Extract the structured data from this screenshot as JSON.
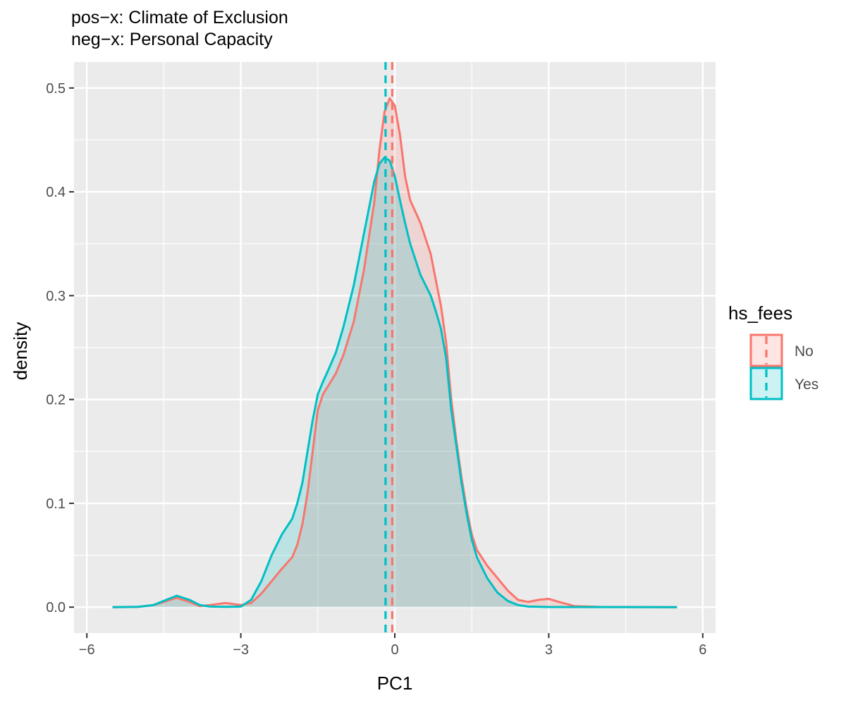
{
  "chart_data": {
    "type": "area",
    "title_lines": [
      "pos−x: Climate of Exclusion",
      "neg−x: Personal Capacity"
    ],
    "xlabel": "PC1",
    "ylabel": "density",
    "xlim": [
      -6,
      6
    ],
    "ylim": [
      0,
      0.5
    ],
    "x_ticks": [
      -6,
      -3,
      0,
      3,
      6
    ],
    "x_tick_labels": [
      "−6",
      "−3",
      "0",
      "3",
      "6"
    ],
    "y_ticks": [
      0,
      0.1,
      0.2,
      0.3,
      0.4,
      0.5
    ],
    "y_tick_labels": [
      "0.0",
      "0.1",
      "0.2",
      "0.3",
      "0.4",
      "0.5"
    ],
    "grid": true,
    "legend": {
      "title": "hs_fees",
      "position": "right",
      "entries": [
        "No",
        "Yes"
      ]
    },
    "series": [
      {
        "name": "No",
        "color": "#F8766D",
        "mean": -0.05,
        "points": [
          [
            -5.5,
            0
          ],
          [
            -5.0,
            0.0003
          ],
          [
            -4.7,
            0.002
          ],
          [
            -4.5,
            0.005
          ],
          [
            -4.25,
            0.009
          ],
          [
            -4.0,
            0.005
          ],
          [
            -3.8,
            0.001
          ],
          [
            -3.6,
            0.002
          ],
          [
            -3.3,
            0.004
          ],
          [
            -3.0,
            0.002
          ],
          [
            -2.8,
            0.004
          ],
          [
            -2.6,
            0.013
          ],
          [
            -2.4,
            0.025
          ],
          [
            -2.2,
            0.037
          ],
          [
            -2.0,
            0.048
          ],
          [
            -1.9,
            0.06
          ],
          [
            -1.8,
            0.08
          ],
          [
            -1.7,
            0.11
          ],
          [
            -1.6,
            0.15
          ],
          [
            -1.5,
            0.19
          ],
          [
            -1.4,
            0.205
          ],
          [
            -1.3,
            0.213
          ],
          [
            -1.15,
            0.225
          ],
          [
            -1.0,
            0.243
          ],
          [
            -0.8,
            0.275
          ],
          [
            -0.6,
            0.325
          ],
          [
            -0.4,
            0.39
          ],
          [
            -0.3,
            0.44
          ],
          [
            -0.2,
            0.477
          ],
          [
            -0.1,
            0.49
          ],
          [
            0.0,
            0.483
          ],
          [
            0.1,
            0.455
          ],
          [
            0.2,
            0.415
          ],
          [
            0.3,
            0.392
          ],
          [
            0.5,
            0.37
          ],
          [
            0.7,
            0.34
          ],
          [
            0.8,
            0.315
          ],
          [
            0.9,
            0.29
          ],
          [
            1.0,
            0.255
          ],
          [
            1.1,
            0.2
          ],
          [
            1.2,
            0.16
          ],
          [
            1.3,
            0.125
          ],
          [
            1.4,
            0.095
          ],
          [
            1.5,
            0.07
          ],
          [
            1.6,
            0.055
          ],
          [
            1.8,
            0.04
          ],
          [
            2.0,
            0.028
          ],
          [
            2.2,
            0.016
          ],
          [
            2.4,
            0.007
          ],
          [
            2.6,
            0.005
          ],
          [
            2.8,
            0.007
          ],
          [
            3.0,
            0.008
          ],
          [
            3.2,
            0.005
          ],
          [
            3.5,
            0.001
          ],
          [
            4.0,
            0.0002
          ],
          [
            5.5,
            0
          ]
        ]
      },
      {
        "name": "Yes",
        "color": "#00BFC4",
        "mean": -0.18,
        "points": [
          [
            -5.5,
            0
          ],
          [
            -5.0,
            0.0003
          ],
          [
            -4.7,
            0.002
          ],
          [
            -4.5,
            0.006
          ],
          [
            -4.25,
            0.011
          ],
          [
            -4.0,
            0.007
          ],
          [
            -3.8,
            0.002
          ],
          [
            -3.6,
            0.0005
          ],
          [
            -3.3,
            0.0003
          ],
          [
            -3.0,
            0.0005
          ],
          [
            -2.8,
            0.007
          ],
          [
            -2.6,
            0.025
          ],
          [
            -2.4,
            0.05
          ],
          [
            -2.2,
            0.07
          ],
          [
            -2.0,
            0.085
          ],
          [
            -1.9,
            0.1
          ],
          [
            -1.8,
            0.12
          ],
          [
            -1.7,
            0.15
          ],
          [
            -1.6,
            0.18
          ],
          [
            -1.5,
            0.205
          ],
          [
            -1.4,
            0.217
          ],
          [
            -1.3,
            0.228
          ],
          [
            -1.15,
            0.245
          ],
          [
            -1.0,
            0.27
          ],
          [
            -0.8,
            0.31
          ],
          [
            -0.6,
            0.36
          ],
          [
            -0.4,
            0.41
          ],
          [
            -0.3,
            0.427
          ],
          [
            -0.2,
            0.433
          ],
          [
            -0.1,
            0.43
          ],
          [
            0.0,
            0.415
          ],
          [
            0.1,
            0.392
          ],
          [
            0.2,
            0.37
          ],
          [
            0.3,
            0.35
          ],
          [
            0.5,
            0.32
          ],
          [
            0.7,
            0.3
          ],
          [
            0.8,
            0.285
          ],
          [
            0.9,
            0.268
          ],
          [
            1.0,
            0.24
          ],
          [
            1.1,
            0.19
          ],
          [
            1.2,
            0.155
          ],
          [
            1.3,
            0.12
          ],
          [
            1.4,
            0.09
          ],
          [
            1.5,
            0.065
          ],
          [
            1.6,
            0.048
          ],
          [
            1.8,
            0.028
          ],
          [
            2.0,
            0.014
          ],
          [
            2.2,
            0.006
          ],
          [
            2.4,
            0.002
          ],
          [
            2.6,
            0.0005
          ],
          [
            3.0,
            0.0001
          ],
          [
            5.5,
            0
          ]
        ]
      }
    ]
  }
}
